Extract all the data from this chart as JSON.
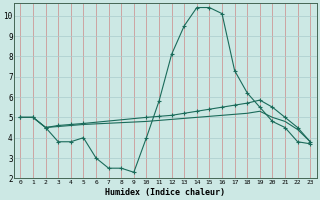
{
  "xlabel": "Humidex (Indice chaleur)",
  "background_color": "#cce8e4",
  "line_color": "#1a6b5a",
  "grid_color_major": "#cc9999",
  "xlim": [
    -0.5,
    23.5
  ],
  "ylim": [
    2,
    10.6
  ],
  "xticks": [
    0,
    1,
    2,
    3,
    4,
    5,
    6,
    7,
    8,
    9,
    10,
    11,
    12,
    13,
    14,
    15,
    16,
    17,
    18,
    19,
    20,
    21,
    22,
    23
  ],
  "yticks": [
    2,
    3,
    4,
    5,
    6,
    7,
    8,
    9,
    10
  ],
  "series1_x": [
    0,
    1,
    2,
    3,
    4,
    5,
    6,
    7,
    8,
    9,
    10,
    11,
    12,
    13,
    14,
    15,
    16,
    17,
    18,
    19,
    20,
    21,
    22,
    23
  ],
  "series1_y": [
    5.0,
    5.0,
    4.5,
    3.8,
    3.8,
    4.0,
    3.0,
    2.5,
    2.5,
    2.3,
    4.0,
    5.8,
    8.1,
    9.5,
    10.4,
    10.4,
    10.1,
    7.3,
    6.2,
    5.5,
    4.8,
    4.5,
    3.8,
    3.7
  ],
  "series2_x": [
    0,
    1,
    2,
    3,
    4,
    5,
    10,
    11,
    12,
    13,
    14,
    15,
    16,
    17,
    18,
    19,
    20,
    21,
    22,
    23
  ],
  "series2_y": [
    5.0,
    5.0,
    4.5,
    4.6,
    4.65,
    4.7,
    5.0,
    5.05,
    5.1,
    5.2,
    5.3,
    5.4,
    5.5,
    5.6,
    5.7,
    5.85,
    5.5,
    5.0,
    4.5,
    3.8
  ],
  "series3_x": [
    0,
    1,
    2,
    3,
    4,
    5,
    10,
    11,
    12,
    13,
    14,
    15,
    16,
    17,
    18,
    19,
    20,
    21,
    22,
    23
  ],
  "series3_y": [
    5.0,
    5.0,
    4.5,
    4.55,
    4.6,
    4.65,
    4.8,
    4.85,
    4.9,
    4.95,
    5.0,
    5.05,
    5.1,
    5.15,
    5.2,
    5.3,
    5.0,
    4.8,
    4.4,
    3.8
  ]
}
